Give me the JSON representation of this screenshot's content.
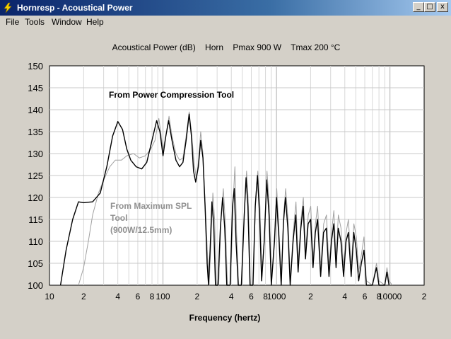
{
  "window": {
    "title": "Hornresp - Acoustical Power",
    "buttons": {
      "minimize": "_",
      "maximize": "□",
      "close": "x"
    }
  },
  "menu": [
    {
      "label": "File"
    },
    {
      "label": "Tools"
    },
    {
      "label": "Window"
    },
    {
      "label": "Help"
    }
  ],
  "chart_data": {
    "type": "line",
    "title": "Acoustical Power (dB)    Horn    Pmax 900 W    Tmax 200 °C",
    "xlabel": "Frequency (hertz)",
    "ylabel": "",
    "xscale": "log",
    "xlim": [
      10,
      20000
    ],
    "ylim": [
      100,
      150
    ],
    "xticks": [
      {
        "v": 10,
        "label": "10"
      },
      {
        "v": 20,
        "label": "2"
      },
      {
        "v": 40,
        "label": "4"
      },
      {
        "v": 60,
        "label": "6"
      },
      {
        "v": 80,
        "label": "8"
      },
      {
        "v": 100,
        "label": "100"
      },
      {
        "v": 200,
        "label": "2"
      },
      {
        "v": 400,
        "label": "4"
      },
      {
        "v": 600,
        "label": "6"
      },
      {
        "v": 800,
        "label": "8"
      },
      {
        "v": 1000,
        "label": "1000"
      },
      {
        "v": 2000,
        "label": "2"
      },
      {
        "v": 4000,
        "label": "4"
      },
      {
        "v": 6000,
        "label": "6"
      },
      {
        "v": 8000,
        "label": "8"
      },
      {
        "v": 10000,
        "label": "10000"
      },
      {
        "v": 20000,
        "label": "2"
      }
    ],
    "yticks": [
      100,
      105,
      110,
      115,
      120,
      125,
      130,
      135,
      140,
      145,
      150
    ],
    "grid": true,
    "annotations": [
      {
        "text": "From Power Compression Tool",
        "color": "#000000"
      },
      {
        "lines": [
          "From Maximum SPL",
          "Tool",
          "(900W/12.5mm)"
        ],
        "color": "#909090"
      }
    ],
    "series": [
      {
        "color": "#000000",
        "points": [
          [
            12.5,
            100
          ],
          [
            14,
            108
          ],
          [
            16,
            115
          ],
          [
            18,
            119
          ],
          [
            20,
            118.8
          ],
          [
            24,
            119
          ],
          [
            28,
            121
          ],
          [
            32,
            127
          ],
          [
            36,
            134
          ],
          [
            40,
            137.3
          ],
          [
            44,
            135.5
          ],
          [
            48,
            131
          ],
          [
            52,
            128.5
          ],
          [
            58,
            127
          ],
          [
            65,
            126.5
          ],
          [
            72,
            128
          ],
          [
            80,
            133
          ],
          [
            88,
            137.5
          ],
          [
            94,
            135
          ],
          [
            100,
            129.5
          ],
          [
            106,
            134
          ],
          [
            112,
            137.5
          ],
          [
            120,
            133
          ],
          [
            130,
            128.5
          ],
          [
            140,
            127
          ],
          [
            150,
            128
          ],
          [
            160,
            133
          ],
          [
            170,
            139
          ],
          [
            178,
            134
          ],
          [
            186,
            126
          ],
          [
            194,
            123.5
          ],
          [
            205,
            127
          ],
          [
            215,
            133
          ],
          [
            225,
            129
          ],
          [
            235,
            118
          ],
          [
            245,
            105
          ],
          [
            252,
            100
          ],
          [
            260,
            108
          ],
          [
            270,
            119
          ],
          [
            280,
            114
          ],
          [
            290,
            100
          ],
          [
            305,
            100
          ],
          [
            320,
            113
          ],
          [
            335,
            120
          ],
          [
            350,
            113
          ],
          [
            365,
            100
          ],
          [
            390,
            100
          ],
          [
            410,
            118
          ],
          [
            425,
            122
          ],
          [
            440,
            110
          ],
          [
            460,
            100
          ],
          [
            490,
            100
          ],
          [
            520,
            116
          ],
          [
            540,
            124.5
          ],
          [
            560,
            118
          ],
          [
            585,
            100
          ],
          [
            620,
            100
          ],
          [
            650,
            118
          ],
          [
            680,
            125
          ],
          [
            710,
            116
          ],
          [
            740,
            101
          ],
          [
            780,
            110
          ],
          [
            820,
            124
          ],
          [
            860,
            116
          ],
          [
            900,
            100
          ],
          [
            960,
            110
          ],
          [
            1000,
            120
          ],
          [
            1050,
            111
          ],
          [
            1100,
            100
          ],
          [
            1150,
            114
          ],
          [
            1200,
            120
          ],
          [
            1260,
            113
          ],
          [
            1320,
            100
          ],
          [
            1400,
            110
          ],
          [
            1480,
            116
          ],
          [
            1550,
            103
          ],
          [
            1640,
            113
          ],
          [
            1720,
            118
          ],
          [
            1800,
            106
          ],
          [
            1900,
            114
          ],
          [
            2000,
            115
          ],
          [
            2100,
            104
          ],
          [
            2200,
            112
          ],
          [
            2300,
            115
          ],
          [
            2450,
            102
          ],
          [
            2600,
            112
          ],
          [
            2750,
            113
          ],
          [
            2900,
            102
          ],
          [
            3050,
            110
          ],
          [
            3200,
            114
          ],
          [
            3350,
            104
          ],
          [
            3500,
            113
          ],
          [
            3700,
            110
          ],
          [
            3900,
            102
          ],
          [
            4100,
            110
          ],
          [
            4300,
            112
          ],
          [
            4550,
            102
          ],
          [
            4800,
            112
          ],
          [
            5050,
            108
          ],
          [
            5300,
            101
          ],
          [
            5600,
            105
          ],
          [
            5900,
            108
          ],
          [
            6200,
            100
          ],
          [
            7000,
            100
          ],
          [
            7600,
            104
          ],
          [
            8000,
            100
          ],
          [
            9000,
            100
          ],
          [
            9400,
            103
          ],
          [
            9800,
            100
          ]
        ]
      },
      {
        "color": "#a0a0a0",
        "points": [
          [
            18,
            100
          ],
          [
            20,
            104
          ],
          [
            22,
            110
          ],
          [
            24,
            116
          ],
          [
            27,
            121
          ],
          [
            30,
            124
          ],
          [
            34,
            127
          ],
          [
            38,
            128.5
          ],
          [
            43,
            128.5
          ],
          [
            48,
            129.5
          ],
          [
            55,
            130
          ],
          [
            62,
            129
          ],
          [
            70,
            129.5
          ],
          [
            78,
            131
          ],
          [
            85,
            133
          ],
          [
            92,
            138
          ],
          [
            100,
            131
          ],
          [
            106,
            134
          ],
          [
            113,
            138.5
          ],
          [
            120,
            134
          ],
          [
            130,
            130
          ],
          [
            140,
            128.5
          ],
          [
            150,
            129
          ],
          [
            160,
            134
          ],
          [
            170,
            139.5
          ],
          [
            178,
            135
          ],
          [
            188,
            128
          ],
          [
            196,
            124.5
          ],
          [
            205,
            128
          ],
          [
            215,
            135
          ],
          [
            225,
            130
          ],
          [
            235,
            119
          ],
          [
            248,
            106
          ],
          [
            255,
            100
          ],
          [
            265,
            110
          ],
          [
            275,
            121
          ],
          [
            285,
            115
          ],
          [
            295,
            100
          ],
          [
            310,
            100
          ],
          [
            325,
            115
          ],
          [
            340,
            122
          ],
          [
            355,
            114
          ],
          [
            370,
            100
          ],
          [
            395,
            100
          ],
          [
            415,
            119
          ],
          [
            430,
            127
          ],
          [
            445,
            112
          ],
          [
            465,
            100
          ],
          [
            495,
            100
          ],
          [
            525,
            118
          ],
          [
            545,
            126
          ],
          [
            565,
            119
          ],
          [
            590,
            100
          ],
          [
            625,
            100
          ],
          [
            655,
            120
          ],
          [
            685,
            126
          ],
          [
            715,
            118
          ],
          [
            745,
            102
          ],
          [
            785,
            112
          ],
          [
            825,
            126
          ],
          [
            865,
            118
          ],
          [
            905,
            101
          ],
          [
            965,
            112
          ],
          [
            1005,
            122
          ],
          [
            1055,
            112
          ],
          [
            1105,
            101
          ],
          [
            1155,
            116
          ],
          [
            1205,
            122
          ],
          [
            1265,
            115
          ],
          [
            1325,
            101
          ],
          [
            1405,
            112
          ],
          [
            1485,
            119
          ],
          [
            1555,
            105
          ],
          [
            1645,
            115
          ],
          [
            1725,
            120
          ],
          [
            1805,
            108
          ],
          [
            1905,
            116
          ],
          [
            2005,
            118
          ],
          [
            2105,
            106
          ],
          [
            2205,
            114
          ],
          [
            2305,
            118
          ],
          [
            2455,
            104
          ],
          [
            2605,
            114
          ],
          [
            2755,
            116
          ],
          [
            2905,
            104
          ],
          [
            3055,
            112
          ],
          [
            3205,
            117
          ],
          [
            3355,
            106
          ],
          [
            3505,
            116
          ],
          [
            3705,
            113
          ],
          [
            3905,
            104
          ],
          [
            4105,
            112
          ],
          [
            4305,
            115
          ],
          [
            4555,
            104
          ],
          [
            4805,
            114
          ],
          [
            5055,
            111
          ],
          [
            5305,
            103
          ],
          [
            5605,
            107
          ],
          [
            5905,
            111
          ],
          [
            6205,
            101
          ],
          [
            7005,
            100
          ],
          [
            7605,
            105
          ],
          [
            8005,
            101
          ],
          [
            9005,
            100
          ],
          [
            9405,
            104
          ],
          [
            9805,
            101
          ],
          [
            10500,
            100
          ]
        ]
      }
    ]
  }
}
